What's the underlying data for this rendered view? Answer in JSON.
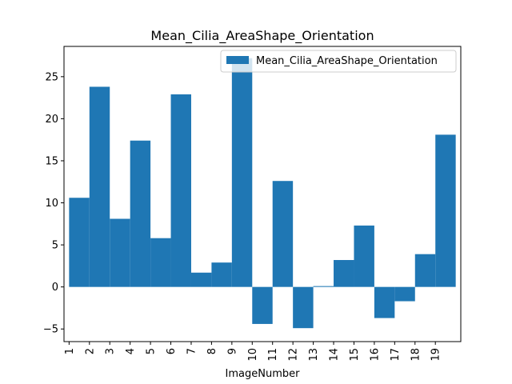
{
  "chart_data": {
    "type": "bar",
    "title": "Mean_Cilia_AreaShape_Orientation",
    "xlabel": "ImageNumber",
    "ylabel": "",
    "categories": [
      "1",
      "2",
      "3",
      "4",
      "5",
      "6",
      "7",
      "8",
      "9",
      "10",
      "11",
      "12",
      "13",
      "14",
      "15",
      "16",
      "17",
      "18",
      "19"
    ],
    "xticks": [
      1,
      2,
      3,
      4,
      5,
      6,
      7,
      8,
      9,
      10,
      11,
      12,
      13,
      14,
      15,
      16,
      17,
      18,
      19
    ],
    "series": [
      {
        "name": "Mean_Cilia_AreaShape_Orientation",
        "x": [
          1,
          2,
          3,
          4,
          5,
          6,
          7,
          8,
          9,
          10,
          11,
          12,
          13,
          14,
          15,
          16,
          17,
          18,
          19
        ],
        "values": [
          10.6,
          23.8,
          8.1,
          17.4,
          5.8,
          22.9,
          1.7,
          2.9,
          27.2,
          -4.4,
          12.6,
          -4.9,
          0.1,
          3.2,
          7.3,
          -3.7,
          -1.7,
          3.9,
          18.1
        ],
        "color": "#1f77b4"
      }
    ],
    "xlim": [
      0.75,
      20.25
    ],
    "ylim": [
      -6.5,
      28.6
    ],
    "yticks": [
      -5,
      0,
      5,
      10,
      15,
      20,
      25
    ],
    "legend": "upper right",
    "grid": false
  }
}
